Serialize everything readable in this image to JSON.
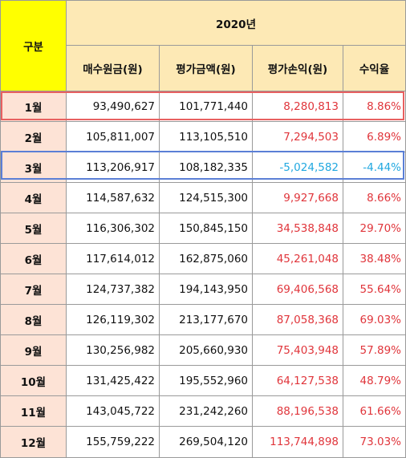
{
  "table": {
    "corner_label": "구분",
    "year_label": "2020년",
    "columns": [
      "매수원금(원)",
      "평가금액(원)",
      "평가손익(원)",
      "수익율"
    ],
    "colors": {
      "positive": "#e0353b",
      "negative": "#21a8e0",
      "corner_bg": "#ffff00",
      "header_bg": "#fde9b5",
      "month_bg": "#fde3d6"
    },
    "rows": [
      {
        "month": "1월",
        "principal": "93,490,627",
        "valuation": "101,771,440",
        "profit": "8,280,813",
        "rate": "8.86%",
        "sign": "pos",
        "highlight": "red"
      },
      {
        "month": "2월",
        "principal": "105,811,007",
        "valuation": "113,105,510",
        "profit": "7,294,503",
        "rate": "6.89%",
        "sign": "pos"
      },
      {
        "month": "3월",
        "principal": "113,206,917",
        "valuation": "108,182,335",
        "profit": "-5,024,582",
        "rate": "-4.44%",
        "sign": "neg",
        "highlight": "blue"
      },
      {
        "month": "4월",
        "principal": "114,587,632",
        "valuation": "124,515,300",
        "profit": "9,927,668",
        "rate": "8.66%",
        "sign": "pos"
      },
      {
        "month": "5월",
        "principal": "116,306,302",
        "valuation": "150,845,150",
        "profit": "34,538,848",
        "rate": "29.70%",
        "sign": "pos"
      },
      {
        "month": "6월",
        "principal": "117,614,012",
        "valuation": "162,875,060",
        "profit": "45,261,048",
        "rate": "38.48%",
        "sign": "pos"
      },
      {
        "month": "7월",
        "principal": "124,737,382",
        "valuation": "194,143,950",
        "profit": "69,406,568",
        "rate": "55.64%",
        "sign": "pos"
      },
      {
        "month": "8월",
        "principal": "126,119,302",
        "valuation": "213,177,670",
        "profit": "87,058,368",
        "rate": "69.03%",
        "sign": "pos"
      },
      {
        "month": "9월",
        "principal": "130,256,982",
        "valuation": "205,660,930",
        "profit": "75,403,948",
        "rate": "57.89%",
        "sign": "pos"
      },
      {
        "month": "10월",
        "principal": "131,425,422",
        "valuation": "195,552,960",
        "profit": "64,127,538",
        "rate": "48.79%",
        "sign": "pos"
      },
      {
        "month": "11월",
        "principal": "143,045,722",
        "valuation": "231,242,260",
        "profit": "88,196,538",
        "rate": "61.66%",
        "sign": "pos"
      },
      {
        "month": "12월",
        "principal": "155,759,222",
        "valuation": "269,504,120",
        "profit": "113,744,898",
        "rate": "73.03%",
        "sign": "pos"
      }
    ]
  }
}
